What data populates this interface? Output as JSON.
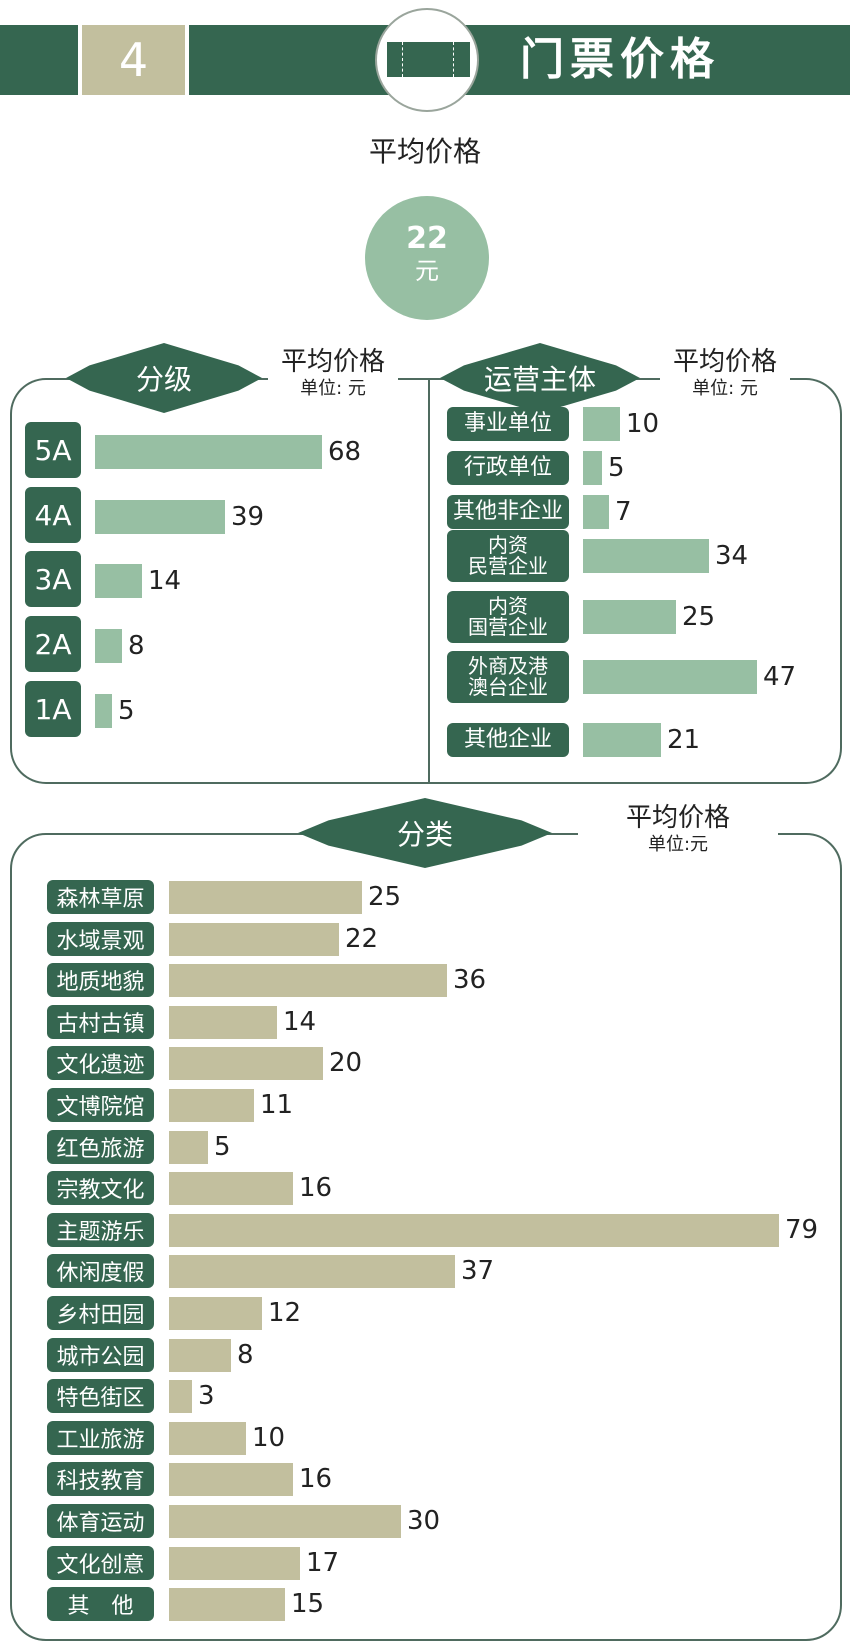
{
  "header": {
    "section_number": "4",
    "title": "门票价格",
    "icon": "ticket-icon"
  },
  "summary": {
    "label": "平均价格",
    "value": "22",
    "unit": "元"
  },
  "panels": {
    "grade": {
      "title": "分级",
      "metric": "平均价格",
      "unit_label": "单位: 元"
    },
    "operator": {
      "title": "运营主体",
      "metric": "平均价格",
      "unit_label": "单位: 元"
    },
    "category": {
      "title": "分类",
      "metric": "平均价格",
      "unit_label": "单位:元"
    }
  },
  "colors": {
    "primary_green": "#356650",
    "light_green_bar": "#97bfa3",
    "tan": "#c2bf9e"
  },
  "chart_data": [
    {
      "type": "bar",
      "orientation": "horizontal",
      "title": "分级 平均价格",
      "unit": "元",
      "categories": [
        "5A",
        "4A",
        "3A",
        "2A",
        "1A"
      ],
      "values": [
        68,
        39,
        14,
        8,
        5
      ],
      "labels": [
        "68",
        "39",
        "14",
        "8",
        "5"
      ]
    },
    {
      "type": "bar",
      "orientation": "horizontal",
      "title": "运营主体 平均价格",
      "unit": "元",
      "categories": [
        "事业单位",
        "行政单位",
        "其他非企业",
        "内资民营企业",
        "内资国营企业",
        "外商及港澳台企业",
        "其他企业"
      ],
      "display_labels": [
        [
          "事业单位"
        ],
        [
          "行政单位"
        ],
        [
          "其他非企业"
        ],
        [
          "内资",
          "民营企业"
        ],
        [
          "内资",
          "国营企业"
        ],
        [
          "外商及港",
          "澳台企业"
        ],
        [
          "其他企业"
        ]
      ],
      "values": [
        10,
        5,
        7,
        34,
        25,
        47,
        21
      ],
      "labels": [
        "10",
        "5",
        "7",
        "34",
        "25",
        "47",
        "21"
      ]
    },
    {
      "type": "bar",
      "orientation": "horizontal",
      "title": "分类 平均价格",
      "unit": "元",
      "categories": [
        "森林草原",
        "水域景观",
        "地质地貌",
        "古村古镇",
        "文化遗迹",
        "文博院馆",
        "红色旅游",
        "宗教文化",
        "主题游乐",
        "休闲度假",
        "乡村田园",
        "城市公园",
        "特色街区",
        "工业旅游",
        "科技教育",
        "体育运动",
        "文化创意",
        "其　他"
      ],
      "values": [
        25,
        22,
        36,
        14,
        20,
        11,
        5,
        16,
        79,
        37,
        12,
        8,
        3,
        10,
        16,
        30,
        17,
        15
      ],
      "labels": [
        "25",
        "22",
        "36",
        "14",
        "20",
        "11",
        "5",
        "16",
        "79",
        "37",
        "12",
        "8",
        "3",
        "10",
        "16",
        "30",
        "17",
        "15"
      ]
    }
  ]
}
